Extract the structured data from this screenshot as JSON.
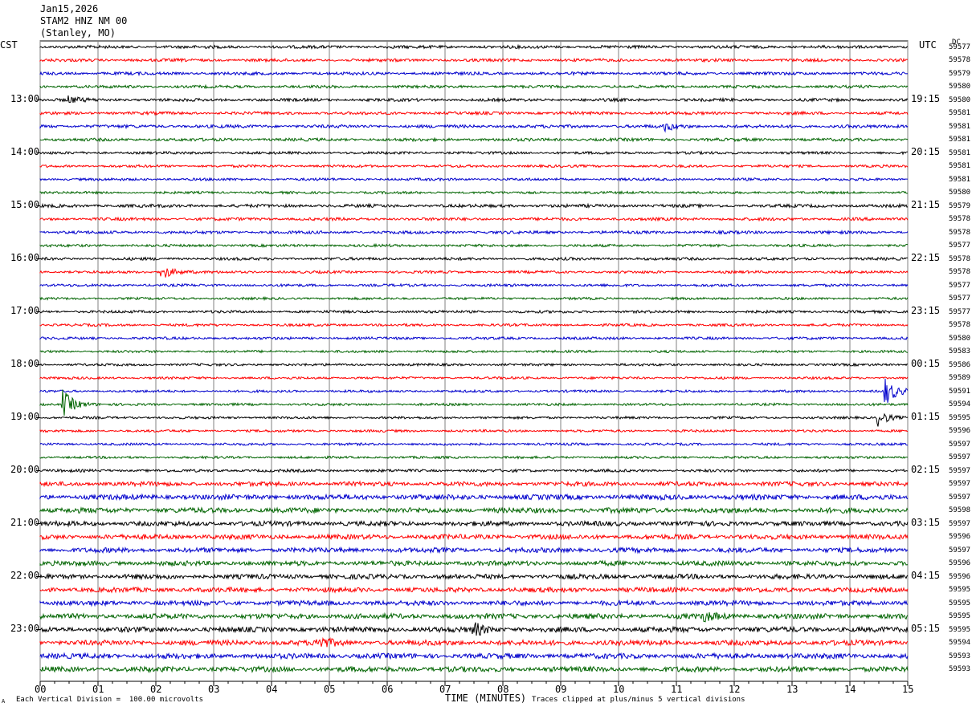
{
  "header": {
    "date": "Jan15,2026",
    "station": "STAM2 HNZ NM 00",
    "location": "(Stanley, MO)"
  },
  "left_tz": "CST",
  "right_tz": "UTC",
  "dc_label": "DC",
  "footer": {
    "scale_note": "Each Vertical Division =  100.00 microvolts",
    "xlabel": "TIME (MINUTES)",
    "clip_note": "Traces clipped at plus/minus 5 vertical divisions",
    "corner_mark": "A"
  },
  "chart_data": {
    "type": "line",
    "title": "",
    "xlabel": "TIME (MINUTES)",
    "ylabel": "",
    "xlim": [
      0,
      15
    ],
    "x_ticks": [
      "00",
      "01",
      "02",
      "03",
      "04",
      "05",
      "06",
      "07",
      "08",
      "09",
      "10",
      "11",
      "12",
      "13",
      "14",
      "15"
    ],
    "grid": true,
    "trace_colors": [
      "#000000",
      "#ff0000",
      "#0000cc",
      "#006400"
    ],
    "left_hour_labels": [
      "13:00",
      "14:00",
      "15:00",
      "16:00",
      "17:00",
      "18:00",
      "19:00",
      "20:00",
      "21:00",
      "22:00",
      "23:00"
    ],
    "right_hour_labels": [
      "19:15",
      "20:15",
      "21:15",
      "22:15",
      "23:15",
      "00:15",
      "01:15",
      "02:15",
      "03:15",
      "04:15",
      "05:15"
    ],
    "dc_offsets": [
      "59577",
      "59578",
      "59579",
      "59580",
      "59580",
      "59581",
      "59581",
      "59581",
      "59581",
      "59581",
      "59581",
      "59580",
      "59579",
      "59578",
      "59578",
      "59577",
      "59578",
      "59578",
      "59577",
      "59577",
      "59577",
      "59578",
      "59580",
      "59583",
      "59586",
      "59589",
      "59591",
      "59594",
      "59595",
      "59596",
      "59597",
      "59597",
      "59597",
      "59597",
      "59597",
      "59598",
      "59597",
      "59596",
      "59597",
      "59596",
      "59596",
      "59595",
      "59595",
      "59595",
      "59595",
      "59594",
      "59593",
      "59593"
    ],
    "trace_amplitude": [
      1.5,
      1.5,
      1.5,
      1.4,
      1.5,
      1.5,
      1.6,
      1.5,
      1.3,
      1.3,
      1.3,
      1.2,
      1.6,
      1.5,
      1.5,
      1.3,
      1.4,
      1.3,
      1.3,
      1.2,
      1.3,
      1.3,
      1.3,
      1.2,
      1.2,
      1.2,
      1.2,
      1.2,
      1.2,
      1.2,
      1.2,
      1.2,
      1.4,
      2.2,
      2.6,
      2.6,
      2.4,
      2.4,
      2.4,
      2.4,
      2.4,
      2.4,
      2.4,
      2.6,
      2.6,
      2.6,
      2.6,
      2.6
    ],
    "events": [
      {
        "trace": 4,
        "minute": 0.5,
        "amplitude": 4
      },
      {
        "trace": 6,
        "minute": 10.8,
        "amplitude": 5
      },
      {
        "trace": 17,
        "minute": 2.1,
        "amplitude": 10
      },
      {
        "trace": 26,
        "minute": 14.6,
        "amplitude": 18
      },
      {
        "trace": 27,
        "minute": 0.4,
        "amplitude": 18
      },
      {
        "trace": 28,
        "minute": 14.5,
        "amplitude": 10
      },
      {
        "trace": 43,
        "minute": 11.5,
        "amplitude": 5
      },
      {
        "trace": 44,
        "minute": 7.5,
        "amplitude": 8
      },
      {
        "trace": 45,
        "minute": 4.8,
        "amplitude": 8
      }
    ]
  }
}
